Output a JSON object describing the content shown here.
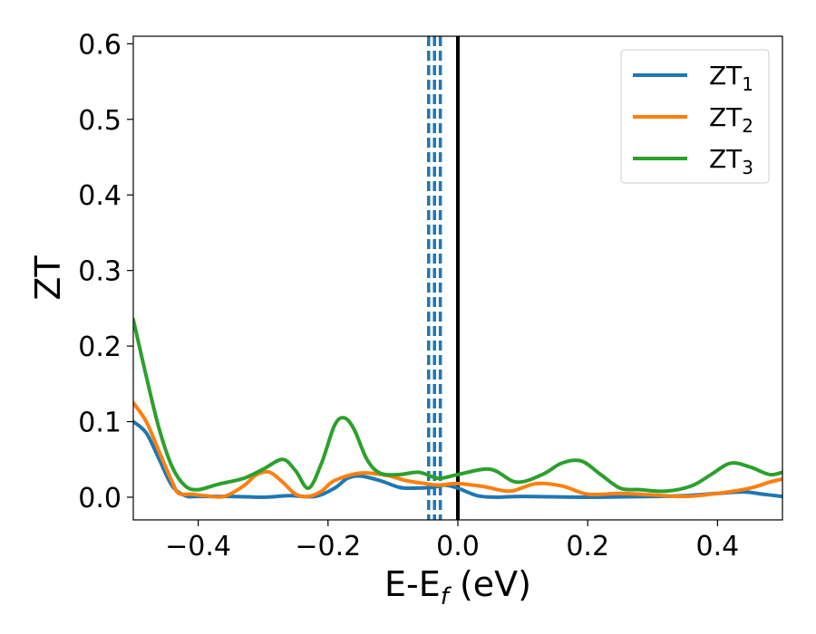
{
  "chart_data": {
    "type": "line",
    "xlabel_main": "E-E",
    "xlabel_sub": "f",
    "xlabel_unit": " (eV)",
    "ylabel": "ZT",
    "xlim": [
      -0.5,
      0.5
    ],
    "ylim": [
      -0.03,
      0.61
    ],
    "xticks": [
      -0.4,
      -0.2,
      0.0,
      0.2,
      0.4
    ],
    "xtick_labels": [
      "−0.4",
      "−0.2",
      "0.0",
      "0.2",
      "0.4"
    ],
    "yticks": [
      0.0,
      0.1,
      0.2,
      0.3,
      0.4,
      0.5,
      0.6
    ],
    "ytick_labels": [
      "0.0",
      "0.1",
      "0.2",
      "0.3",
      "0.4",
      "0.5",
      "0.6"
    ],
    "grid": false,
    "legend_position": "top-right",
    "vlines": [
      {
        "x": -0.045,
        "style": "dashed",
        "color": "#1f77b4"
      },
      {
        "x": -0.036,
        "style": "dashed",
        "color": "#1f77b4"
      },
      {
        "x": -0.027,
        "style": "dashed",
        "color": "#1f77b4"
      },
      {
        "x": 0.0,
        "style": "solid",
        "color": "#000000"
      }
    ],
    "series": [
      {
        "name_base": "ZT",
        "name_sub": "1",
        "color": "#1f77b4",
        "x": [
          -0.5,
          -0.48,
          -0.46,
          -0.44,
          -0.42,
          -0.4,
          -0.35,
          -0.3,
          -0.26,
          -0.22,
          -0.19,
          -0.17,
          -0.15,
          -0.12,
          -0.09,
          -0.07,
          -0.04,
          -0.02,
          0.0,
          0.03,
          0.06,
          0.1,
          0.2,
          0.3,
          0.35,
          0.4,
          0.44,
          0.47,
          0.5
        ],
        "y": [
          0.1,
          0.085,
          0.05,
          0.015,
          0.002,
          0.001,
          0.001,
          0.0,
          0.002,
          0.001,
          0.012,
          0.025,
          0.028,
          0.022,
          0.013,
          0.012,
          0.013,
          0.016,
          0.012,
          0.002,
          0.0,
          0.001,
          0.0,
          0.001,
          0.002,
          0.005,
          0.007,
          0.004,
          0.001
        ]
      },
      {
        "name_base": "ZT",
        "name_sub": "2",
        "color": "#ff7f0e",
        "x": [
          -0.5,
          -0.48,
          -0.46,
          -0.44,
          -0.43,
          -0.41,
          -0.39,
          -0.36,
          -0.33,
          -0.31,
          -0.29,
          -0.27,
          -0.25,
          -0.23,
          -0.21,
          -0.19,
          -0.15,
          -0.11,
          -0.08,
          -0.05,
          -0.03,
          0.0,
          0.04,
          0.08,
          0.12,
          0.16,
          0.2,
          0.25,
          0.3,
          0.35,
          0.4,
          0.45,
          0.48,
          0.5
        ],
        "y": [
          0.125,
          0.1,
          0.06,
          0.02,
          0.005,
          0.004,
          0.002,
          0.001,
          0.015,
          0.03,
          0.033,
          0.02,
          0.004,
          0.001,
          0.008,
          0.022,
          0.032,
          0.029,
          0.022,
          0.018,
          0.016,
          0.018,
          0.014,
          0.008,
          0.018,
          0.015,
          0.004,
          0.005,
          0.003,
          0.001,
          0.005,
          0.012,
          0.02,
          0.024
        ]
      },
      {
        "name_base": "ZT",
        "name_sub": "3",
        "color": "#2ca02c",
        "x": [
          -0.5,
          -0.48,
          -0.46,
          -0.44,
          -0.42,
          -0.4,
          -0.37,
          -0.33,
          -0.3,
          -0.27,
          -0.25,
          -0.23,
          -0.21,
          -0.19,
          -0.175,
          -0.16,
          -0.14,
          -0.12,
          -0.09,
          -0.06,
          -0.03,
          0.0,
          0.05,
          0.09,
          0.13,
          0.16,
          0.19,
          0.22,
          0.25,
          0.28,
          0.32,
          0.36,
          0.39,
          0.42,
          0.45,
          0.48,
          0.5
        ],
        "y": [
          0.235,
          0.16,
          0.09,
          0.04,
          0.015,
          0.01,
          0.017,
          0.025,
          0.037,
          0.05,
          0.035,
          0.012,
          0.045,
          0.095,
          0.105,
          0.09,
          0.05,
          0.032,
          0.03,
          0.033,
          0.025,
          0.03,
          0.037,
          0.02,
          0.03,
          0.045,
          0.048,
          0.03,
          0.012,
          0.01,
          0.008,
          0.015,
          0.03,
          0.045,
          0.04,
          0.03,
          0.033
        ]
      }
    ]
  }
}
